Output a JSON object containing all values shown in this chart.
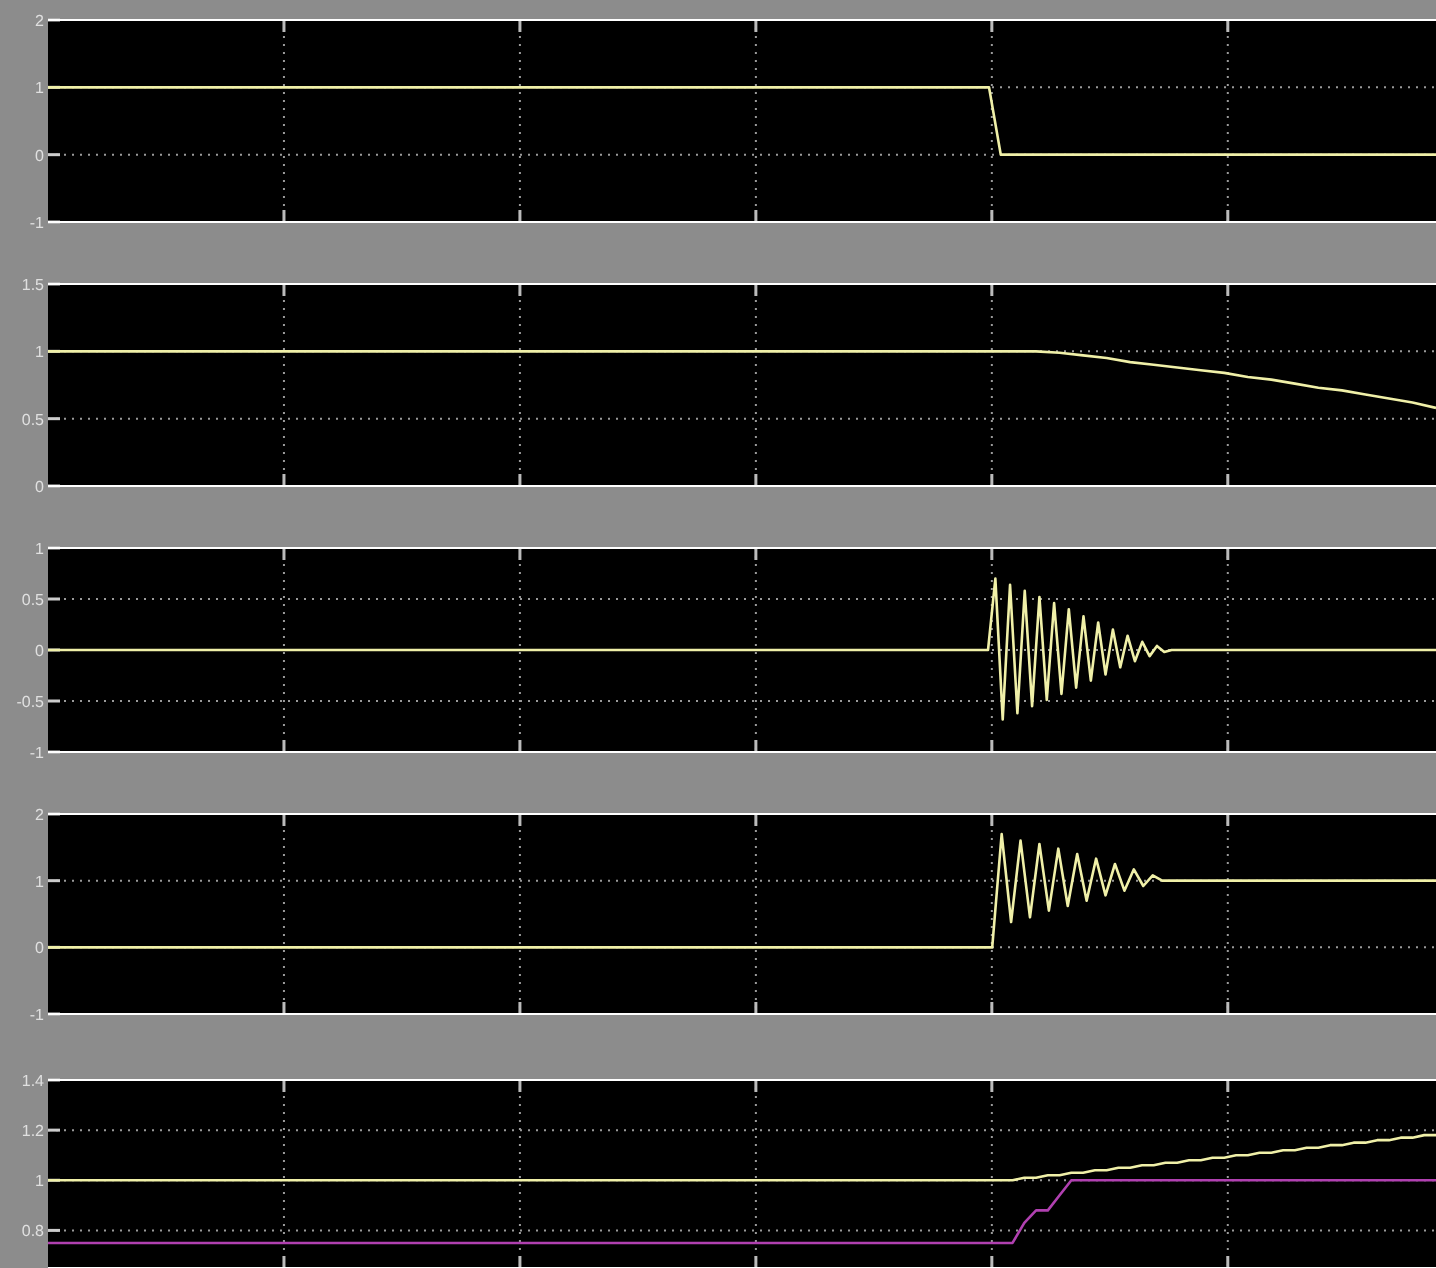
{
  "chart_data": [
    {
      "type": "line",
      "ylim": [
        -1,
        2
      ],
      "yticks": [
        2,
        1,
        0,
        -1
      ],
      "tick_labels": "y",
      "grid": true,
      "categories": [
        null,
        null,
        null,
        null,
        null,
        null,
        null,
        null,
        null,
        null,
        null,
        null,
        null,
        null,
        null,
        null,
        null,
        null,
        null,
        null,
        null,
        null,
        null,
        null,
        null,
        null,
        null,
        null,
        null,
        null,
        null,
        null,
        null,
        null,
        null,
        null,
        null,
        null,
        null,
        null,
        null,
        null,
        null,
        null,
        null,
        null,
        null,
        null,
        null,
        null,
        null,
        null,
        null,
        null,
        null,
        null,
        null,
        null,
        null,
        null,
        null,
        null,
        null,
        null,
        null,
        null,
        null,
        null,
        null,
        null,
        null,
        null,
        null,
        null,
        null,
        null,
        null,
        null,
        null,
        null,
        null,
        null,
        null,
        null,
        null,
        null,
        null,
        null,
        null,
        null,
        null,
        null,
        null,
        null,
        null,
        null,
        null,
        null,
        null,
        null,
        null,
        null,
        null,
        null,
        null,
        null,
        null,
        null,
        null,
        null,
        null,
        null,
        null,
        null,
        null,
        null,
        null,
        null,
        null
      ],
      "series": [
        {
          "color": "#f0f0a8",
          "values": [
            1,
            1,
            1,
            1,
            1,
            1,
            1,
            1,
            1,
            1,
            1,
            1,
            1,
            1,
            1,
            1,
            1,
            1,
            1,
            1,
            1,
            1,
            1,
            1,
            1,
            1,
            1,
            1,
            1,
            1,
            1,
            1,
            1,
            1,
            1,
            1,
            1,
            1,
            1,
            1,
            1,
            1,
            1,
            1,
            1,
            1,
            1,
            1,
            1,
            1,
            1,
            1,
            1,
            1,
            1,
            1,
            1,
            1,
            1,
            1,
            1,
            1,
            1,
            1,
            1,
            1,
            1,
            1,
            1,
            1,
            1,
            1,
            1,
            1,
            1,
            1,
            1,
            1,
            1,
            1,
            1,
            0,
            0,
            0,
            0,
            0,
            0,
            0,
            0,
            0,
            0,
            0,
            0,
            0,
            0,
            0,
            0,
            0,
            0,
            0,
            0,
            0,
            0,
            0,
            0,
            0,
            0,
            0,
            0,
            0,
            0,
            0,
            0,
            0,
            0,
            0,
            0,
            0,
            0
          ]
        }
      ]
    },
    {
      "type": "line",
      "ylim": [
        0,
        1.5
      ],
      "yticks": [
        1.5,
        1,
        0.5,
        0
      ],
      "tick_labels": "y",
      "grid": true,
      "categories": [
        null,
        null,
        null,
        null,
        null,
        null,
        null,
        null,
        null,
        null,
        null,
        null,
        null,
        null,
        null,
        null,
        null,
        null,
        null,
        null,
        null,
        null,
        null,
        null,
        null,
        null,
        null,
        null,
        null,
        null,
        null,
        null,
        null,
        null,
        null,
        null,
        null,
        null,
        null,
        null,
        null,
        null,
        null,
        null,
        null,
        null,
        null,
        null,
        null,
        null,
        null,
        null,
        null,
        null,
        null,
        null,
        null,
        null,
        null,
        null
      ],
      "series": [
        {
          "color": "#f0f0a8",
          "values": [
            1,
            1,
            1,
            1,
            1,
            1,
            1,
            1,
            1,
            1,
            1,
            1,
            1,
            1,
            1,
            1,
            1,
            1,
            1,
            1,
            1,
            1,
            1,
            1,
            1,
            1,
            1,
            1,
            1,
            1,
            1,
            1,
            1,
            1,
            1,
            1,
            1,
            1,
            1,
            1,
            1,
            1,
            1,
            0.99,
            0.97,
            0.95,
            0.92,
            0.9,
            0.88,
            0.86,
            0.84,
            0.81,
            0.79,
            0.76,
            0.73,
            0.71,
            0.68,
            0.65,
            0.62,
            0.58
          ]
        }
      ]
    },
    {
      "type": "line",
      "ylim": [
        -1,
        1
      ],
      "yticks": [
        1,
        0.5,
        0,
        -0.5,
        -1
      ],
      "tick_labels": "y",
      "grid": true,
      "categories": [
        null,
        null,
        null,
        null,
        null,
        null,
        null,
        null,
        null,
        null,
        null,
        null,
        null,
        null,
        null,
        null,
        null,
        null,
        null,
        null,
        null,
        null,
        null,
        null,
        null,
        null,
        null,
        null,
        null,
        null,
        null,
        null,
        null,
        null,
        null,
        null,
        null,
        null,
        null,
        null,
        null,
        null,
        null,
        null,
        null,
        null,
        null,
        null,
        null,
        null,
        null,
        null,
        null,
        null,
        null,
        null,
        null,
        null,
        null,
        null,
        null,
        null,
        null,
        null,
        null,
        null,
        null,
        null,
        null,
        null,
        null,
        null,
        null,
        null,
        null,
        null,
        null,
        null,
        null,
        null,
        null,
        null,
        null,
        null,
        null,
        null,
        null,
        null,
        null,
        null,
        null,
        null,
        null,
        null,
        null,
        null,
        null,
        null,
        null,
        null,
        null,
        null,
        null,
        null,
        null,
        null,
        null,
        null,
        null,
        null,
        null,
        null,
        null,
        null,
        null,
        null,
        null,
        null,
        null,
        null,
        null,
        null,
        null,
        null,
        null,
        null,
        null,
        null,
        null,
        null,
        null,
        null,
        null,
        null,
        null,
        null,
        null,
        null,
        null,
        null,
        null,
        null,
        null,
        null,
        null,
        null,
        null,
        null,
        null,
        null,
        null,
        null,
        null,
        null,
        null,
        null,
        null,
        null,
        null,
        null,
        null,
        null,
        null,
        null,
        null,
        null,
        null,
        null,
        null,
        null,
        null,
        null,
        null,
        null,
        null,
        null,
        null,
        null,
        null,
        null,
        null,
        null,
        null,
        null,
        null,
        null,
        null,
        null,
        null,
        null
      ],
      "series": [
        {
          "color": "#f0f0a8",
          "values": [
            0,
            0,
            0,
            0,
            0,
            0,
            0,
            0,
            0,
            0,
            0,
            0,
            0,
            0,
            0,
            0,
            0,
            0,
            0,
            0,
            0,
            0,
            0,
            0,
            0,
            0,
            0,
            0,
            0,
            0,
            0,
            0,
            0,
            0,
            0,
            0,
            0,
            0,
            0,
            0,
            0,
            0,
            0,
            0,
            0,
            0,
            0,
            0,
            0,
            0,
            0,
            0,
            0,
            0,
            0,
            0,
            0,
            0,
            0,
            0,
            0,
            0,
            0,
            0,
            0,
            0,
            0,
            0,
            0,
            0,
            0,
            0,
            0,
            0,
            0,
            0,
            0,
            0,
            0,
            0,
            0,
            0,
            0,
            0,
            0,
            0,
            0,
            0,
            0,
            0,
            0,
            0,
            0,
            0,
            0,
            0,
            0,
            0,
            0,
            0,
            0,
            0,
            0,
            0,
            0,
            0,
            0,
            0,
            0,
            0,
            0,
            0,
            0,
            0,
            0,
            0,
            0,
            0,
            0,
            0,
            0,
            0,
            0,
            0,
            0,
            0,
            0,
            0,
            0,
            0.7,
            -0.68,
            0.64,
            -0.62,
            0.58,
            -0.55,
            0.52,
            -0.49,
            0.46,
            -0.43,
            0.4,
            -0.37,
            0.33,
            -0.3,
            0.27,
            -0.24,
            0.2,
            -0.17,
            0.14,
            -0.11,
            0.08,
            -0.06,
            0.04,
            -0.02,
            0,
            0,
            0,
            0,
            0,
            0,
            0,
            0,
            0,
            0,
            0,
            0,
            0,
            0,
            0,
            0,
            0,
            0,
            0,
            0,
            0,
            0,
            0,
            0,
            0,
            0,
            0,
            0,
            0,
            0,
            0,
            0,
            0,
            0,
            0,
            0,
            0
          ]
        }
      ]
    },
    {
      "type": "line",
      "ylim": [
        -1,
        2
      ],
      "yticks": [
        2,
        1,
        0,
        -1
      ],
      "tick_labels": "y",
      "grid": true,
      "categories": [
        null,
        null,
        null,
        null,
        null,
        null,
        null,
        null,
        null,
        null,
        null,
        null,
        null,
        null,
        null,
        null,
        null,
        null,
        null,
        null,
        null,
        null,
        null,
        null,
        null,
        null,
        null,
        null,
        null,
        null,
        null,
        null,
        null,
        null,
        null,
        null,
        null,
        null,
        null,
        null,
        null,
        null,
        null,
        null,
        null,
        null,
        null,
        null,
        null,
        null,
        null,
        null,
        null,
        null,
        null,
        null,
        null,
        null,
        null,
        null,
        null,
        null,
        null,
        null,
        null,
        null,
        null,
        null,
        null,
        null,
        null,
        null,
        null,
        null,
        null,
        null,
        null,
        null,
        null,
        null,
        null,
        null,
        null,
        null,
        null,
        null,
        null,
        null,
        null,
        null,
        null,
        null,
        null,
        null,
        null,
        null,
        null,
        null,
        null,
        null,
        null,
        null,
        null,
        null,
        null,
        null,
        null,
        null,
        null,
        null,
        null,
        null,
        null,
        null,
        null,
        null,
        null,
        null,
        null,
        null,
        null,
        null,
        null,
        null,
        null,
        null,
        null,
        null,
        null,
        null,
        null,
        null,
        null,
        null,
        null,
        null,
        null,
        null,
        null,
        null,
        null,
        null,
        null,
        null,
        null,
        null,
        null,
        null
      ],
      "series": [
        {
          "color": "#f0f0a8",
          "values": [
            0,
            0,
            0,
            0,
            0,
            0,
            0,
            0,
            0,
            0,
            0,
            0,
            0,
            0,
            0,
            0,
            0,
            0,
            0,
            0,
            0,
            0,
            0,
            0,
            0,
            0,
            0,
            0,
            0,
            0,
            0,
            0,
            0,
            0,
            0,
            0,
            0,
            0,
            0,
            0,
            0,
            0,
            0,
            0,
            0,
            0,
            0,
            0,
            0,
            0,
            0,
            0,
            0,
            0,
            0,
            0,
            0,
            0,
            0,
            0,
            0,
            0,
            0,
            0,
            0,
            0,
            0,
            0,
            0,
            0,
            0,
            0,
            0,
            0,
            0,
            0,
            0,
            0,
            0,
            0,
            0,
            0,
            0,
            0,
            0,
            0,
            0,
            0,
            0,
            0,
            0,
            0,
            0,
            0,
            0,
            0,
            0,
            0,
            0,
            0,
            0,
            1.7,
            0.38,
            1.6,
            0.45,
            1.55,
            0.55,
            1.48,
            0.62,
            1.4,
            0.7,
            1.33,
            0.78,
            1.25,
            0.85,
            1.17,
            0.92,
            1.08,
            1,
            1,
            1,
            1,
            1,
            1,
            1,
            1,
            1,
            1,
            1,
            1,
            1,
            1,
            1,
            1,
            1,
            1,
            1,
            1,
            1,
            1,
            1,
            1,
            1,
            1,
            1,
            1,
            1,
            1
          ]
        }
      ]
    },
    {
      "type": "line",
      "ylim": [
        0.65,
        1.4
      ],
      "yticks": [
        1.4,
        1.2,
        1,
        0.8
      ],
      "tick_labels": "y",
      "grid": true,
      "categories": [
        null,
        null,
        null,
        null,
        null,
        null,
        null,
        null,
        null,
        null,
        null,
        null,
        null,
        null,
        null,
        null,
        null,
        null,
        null,
        null,
        null,
        null,
        null,
        null,
        null,
        null,
        null,
        null,
        null,
        null,
        null,
        null,
        null,
        null,
        null,
        null,
        null,
        null,
        null,
        null,
        null,
        null,
        null,
        null,
        null,
        null,
        null,
        null,
        null,
        null,
        null,
        null,
        null,
        null,
        null,
        null,
        null,
        null,
        null,
        null,
        null,
        null,
        null,
        null,
        null,
        null,
        null,
        null,
        null,
        null,
        null,
        null,
        null,
        null,
        null,
        null,
        null,
        null,
        null,
        null,
        null,
        null,
        null,
        null,
        null,
        null,
        null,
        null,
        null,
        null,
        null,
        null,
        null,
        null,
        null,
        null,
        null,
        null,
        null,
        null,
        null,
        null,
        null,
        null,
        null,
        null,
        null,
        null,
        null,
        null,
        null,
        null,
        null,
        null,
        null,
        null,
        null,
        null,
        null
      ],
      "series": [
        {
          "color": "#f0f0a8",
          "values": [
            1,
            1,
            1,
            1,
            1,
            1,
            1,
            1,
            1,
            1,
            1,
            1,
            1,
            1,
            1,
            1,
            1,
            1,
            1,
            1,
            1,
            1,
            1,
            1,
            1,
            1,
            1,
            1,
            1,
            1,
            1,
            1,
            1,
            1,
            1,
            1,
            1,
            1,
            1,
            1,
            1,
            1,
            1,
            1,
            1,
            1,
            1,
            1,
            1,
            1,
            1,
            1,
            1,
            1,
            1,
            1,
            1,
            1,
            1,
            1,
            1,
            1,
            1,
            1,
            1,
            1,
            1,
            1,
            1,
            1,
            1,
            1,
            1,
            1,
            1,
            1,
            1,
            1,
            1,
            1,
            1,
            1,
            1,
            1.01,
            1.01,
            1.02,
            1.02,
            1.03,
            1.03,
            1.04,
            1.04,
            1.05,
            1.05,
            1.06,
            1.06,
            1.07,
            1.07,
            1.08,
            1.08,
            1.09,
            1.09,
            1.1,
            1.1,
            1.11,
            1.11,
            1.12,
            1.12,
            1.13,
            1.13,
            1.14,
            1.14,
            1.15,
            1.15,
            1.16,
            1.16,
            1.17,
            1.17,
            1.18,
            1.18
          ]
        },
        {
          "color": "#b040b0",
          "values": [
            0.75,
            0.75,
            0.75,
            0.75,
            0.75,
            0.75,
            0.75,
            0.75,
            0.75,
            0.75,
            0.75,
            0.75,
            0.75,
            0.75,
            0.75,
            0.75,
            0.75,
            0.75,
            0.75,
            0.75,
            0.75,
            0.75,
            0.75,
            0.75,
            0.75,
            0.75,
            0.75,
            0.75,
            0.75,
            0.75,
            0.75,
            0.75,
            0.75,
            0.75,
            0.75,
            0.75,
            0.75,
            0.75,
            0.75,
            0.75,
            0.75,
            0.75,
            0.75,
            0.75,
            0.75,
            0.75,
            0.75,
            0.75,
            0.75,
            0.75,
            0.75,
            0.75,
            0.75,
            0.75,
            0.75,
            0.75,
            0.75,
            0.75,
            0.75,
            0.75,
            0.75,
            0.75,
            0.75,
            0.75,
            0.75,
            0.75,
            0.75,
            0.75,
            0.75,
            0.75,
            0.75,
            0.75,
            0.75,
            0.75,
            0.75,
            0.75,
            0.75,
            0.75,
            0.75,
            0.75,
            0.75,
            0.75,
            0.75,
            0.83,
            0.88,
            0.88,
            0.94,
            1,
            1,
            1,
            1,
            1,
            1,
            1,
            1,
            1,
            1,
            1,
            1,
            1,
            1,
            1,
            1,
            1,
            1,
            1,
            1,
            1,
            1,
            1,
            1,
            1,
            1,
            1,
            1,
            1,
            1,
            1,
            1
          ]
        }
      ]
    }
  ]
}
